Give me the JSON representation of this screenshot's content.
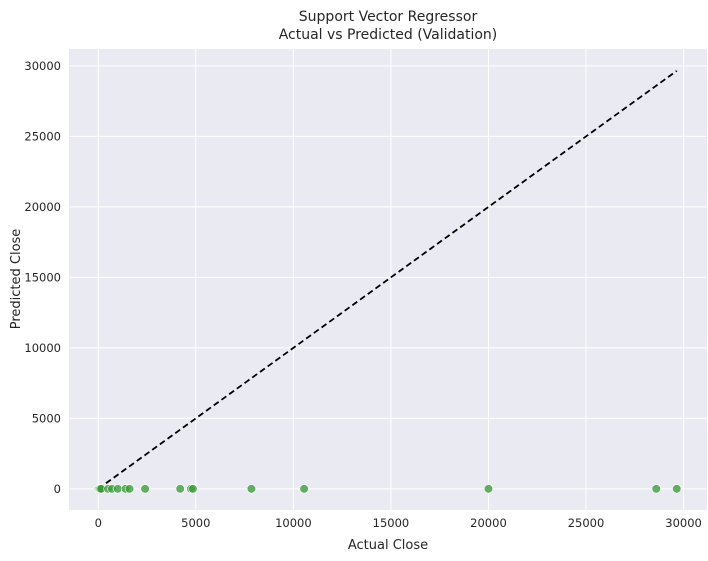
{
  "chart_data": {
    "type": "scatter",
    "title": "Support Vector Regressor",
    "subtitle": "Actual vs Predicted (Validation)",
    "xlabel": "Actual Close",
    "ylabel": "Predicted Close",
    "xlim": [
      -1500,
      31200
    ],
    "ylim": [
      -1500,
      31200
    ],
    "xticks": [
      0,
      5000,
      10000,
      15000,
      20000,
      25000,
      30000
    ],
    "yticks": [
      0,
      5000,
      10000,
      15000,
      20000,
      25000,
      30000
    ],
    "grid": true,
    "reference_line": {
      "style": "dashed",
      "color": "#000000",
      "from": [
        0,
        0
      ],
      "to": [
        29650,
        29650
      ]
    },
    "series": [
      {
        "color": "#3a9a3a",
        "points": [
          [
            0,
            0
          ],
          [
            20,
            0
          ],
          [
            60,
            0
          ],
          [
            100,
            0
          ],
          [
            150,
            0
          ],
          [
            500,
            0
          ],
          [
            700,
            0
          ],
          [
            1000,
            0
          ],
          [
            1400,
            0
          ],
          [
            1600,
            0
          ],
          [
            2400,
            0
          ],
          [
            4200,
            0
          ],
          [
            4750,
            0
          ],
          [
            4850,
            0
          ],
          [
            7850,
            0
          ],
          [
            10550,
            0
          ],
          [
            20000,
            0
          ],
          [
            28600,
            0
          ],
          [
            29650,
            0
          ]
        ]
      }
    ],
    "colors": {
      "background": "#eaeaf2",
      "grid": "#ffffff"
    }
  }
}
